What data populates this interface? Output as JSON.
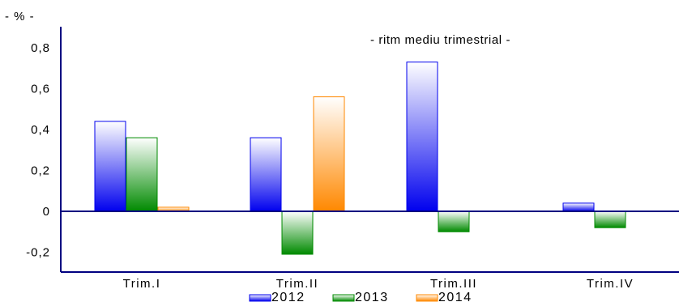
{
  "chart_data": {
    "type": "bar",
    "unit_label": "- % -",
    "annotation": "- ritm  mediu trimestrial -",
    "categories": [
      "Trim.I",
      "Trim.II",
      "Trim.III",
      "Trim.IV"
    ],
    "series": [
      {
        "name": "2012",
        "values": [
          0.44,
          0.36,
          0.73,
          0.04
        ],
        "color": "#0000ee",
        "light": "#ffffff"
      },
      {
        "name": "2013",
        "values": [
          0.36,
          -0.21,
          -0.1,
          -0.08
        ],
        "color": "#008a00",
        "light": "#ffffff"
      },
      {
        "name": "2014",
        "values": [
          0.02,
          0.56,
          null,
          null
        ],
        "color": "#ff8800",
        "light": "#ffffff"
      }
    ],
    "yticks": [
      -0.2,
      0,
      0.2,
      0.4,
      0.6,
      0.8
    ],
    "ytick_labels": [
      "-0,2",
      "0",
      "0,2",
      "0,4",
      "0,6",
      "0,8"
    ],
    "ylim": [
      -0.3,
      0.9
    ],
    "grid": false,
    "legend_position": "bottom"
  }
}
